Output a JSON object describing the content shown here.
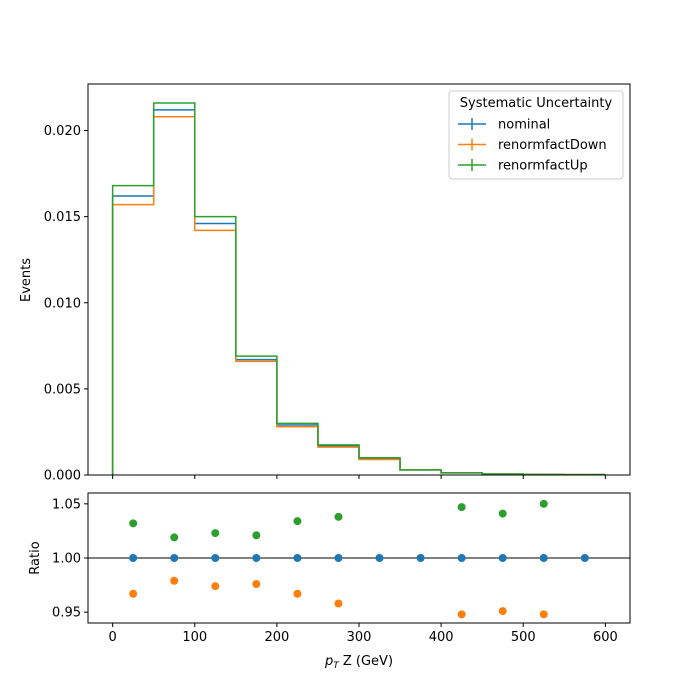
{
  "chart_data": [
    {
      "type": "histogram",
      "panel": "main",
      "ylabel": "Events",
      "xlim": [
        -30,
        630
      ],
      "ylim": [
        0,
        0.0227
      ],
      "yticks": [
        0.0,
        0.005,
        0.01,
        0.015,
        0.02
      ],
      "ytick_labels": [
        "0.000",
        "0.005",
        "0.010",
        "0.015",
        "0.020"
      ],
      "bin_edges": [
        0,
        50,
        100,
        150,
        200,
        250,
        300,
        350,
        400,
        450,
        500,
        550,
        600
      ],
      "legend": {
        "title": "Systematic Uncertainty",
        "placement": "top-right"
      },
      "series": [
        {
          "name": "nominal",
          "color": "#1f77b4",
          "values": [
            0.0162,
            0.0212,
            0.0146,
            0.0067,
            0.0029,
            0.00168,
            0.00095,
            0.0003,
            0.00012,
            5e-05,
            3e-05,
            2e-05
          ]
        },
        {
          "name": "renormfactDown",
          "color": "#ff7f0e",
          "values": [
            0.0157,
            0.0208,
            0.0142,
            0.0066,
            0.0028,
            0.00162,
            0.0009,
            0.0003,
            0.00012,
            5e-05,
            3e-05,
            2e-05
          ]
        },
        {
          "name": "renormfactUp",
          "color": "#2ca02c",
          "values": [
            0.0168,
            0.0216,
            0.015,
            0.0069,
            0.003,
            0.00175,
            0.001,
            0.0003,
            0.00013,
            6e-05,
            3e-05,
            2e-05
          ]
        }
      ]
    },
    {
      "type": "scatter",
      "panel": "ratio",
      "xlabel_math": "p",
      "xlabel_sub": "T",
      "xlabel_rest": " Z (GeV)",
      "ylabel": "Ratio",
      "xlim": [
        -30,
        630
      ],
      "ylim": [
        0.94,
        1.06
      ],
      "xticks": [
        0,
        100,
        200,
        300,
        400,
        500,
        600
      ],
      "xtick_labels": [
        "0",
        "100",
        "200",
        "300",
        "400",
        "500",
        "600"
      ],
      "yticks": [
        0.95,
        1.0,
        1.05
      ],
      "ytick_labels": [
        "0.95",
        "1.00",
        "1.05"
      ],
      "reference_line": 1.0,
      "series": [
        {
          "name": "nominal",
          "color": "#1f77b4",
          "points": [
            [
              25,
              1.0
            ],
            [
              75,
              1.0
            ],
            [
              125,
              1.0
            ],
            [
              175,
              1.0
            ],
            [
              225,
              1.0
            ],
            [
              275,
              1.0
            ],
            [
              325,
              1.0
            ],
            [
              375,
              1.0
            ],
            [
              425,
              1.0
            ],
            [
              475,
              1.0
            ],
            [
              525,
              1.0
            ],
            [
              575,
              1.0
            ]
          ]
        },
        {
          "name": "renormfactDown",
          "color": "#ff7f0e",
          "points": [
            [
              25,
              0.967
            ],
            [
              75,
              0.979
            ],
            [
              125,
              0.974
            ],
            [
              175,
              0.976
            ],
            [
              225,
              0.967
            ],
            [
              275,
              0.958
            ],
            [
              425,
              0.948
            ],
            [
              475,
              0.951
            ],
            [
              525,
              0.948
            ]
          ]
        },
        {
          "name": "renormfactUp",
          "color": "#2ca02c",
          "points": [
            [
              25,
              1.032
            ],
            [
              75,
              1.019
            ],
            [
              125,
              1.023
            ],
            [
              175,
              1.021
            ],
            [
              225,
              1.034
            ],
            [
              275,
              1.038
            ],
            [
              425,
              1.047
            ],
            [
              475,
              1.041
            ],
            [
              525,
              1.05
            ]
          ]
        }
      ]
    }
  ]
}
